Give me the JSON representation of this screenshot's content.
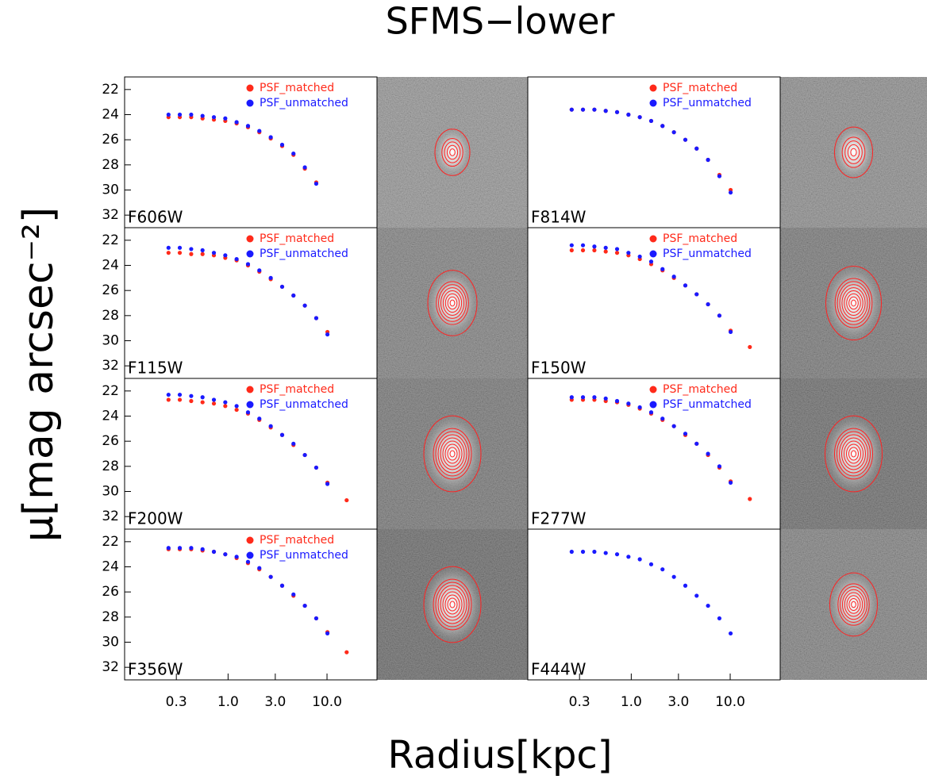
{
  "figure": {
    "title": "SFMS−lower",
    "xlabel": "Radius[kpc]",
    "ylabel": "μ[mag arcsec⁻²]"
  },
  "chart_data": [
    {
      "type": "scatter",
      "title": "F606W",
      "xscale": "log",
      "xlim": [
        0.09,
        32
      ],
      "ylim": [
        33,
        21
      ],
      "yticks": [
        22,
        24,
        26,
        28,
        30,
        32
      ],
      "x": [
        0.25,
        0.325,
        0.424,
        0.552,
        0.719,
        0.937,
        1.22,
        1.59,
        2.07,
        2.7,
        3.52,
        4.58,
        5.97,
        7.78
      ],
      "series": [
        {
          "name": "PSF_matched",
          "color": "#ff2a1a",
          "values": [
            24.2,
            24.2,
            24.2,
            24.3,
            24.4,
            24.5,
            24.7,
            25.0,
            25.4,
            25.9,
            26.5,
            27.2,
            28.3,
            29.4
          ]
        },
        {
          "name": "PSF_unmatched",
          "color": "#1a1aff",
          "values": [
            24.0,
            24.0,
            24.0,
            24.1,
            24.2,
            24.3,
            24.6,
            24.9,
            25.3,
            25.8,
            26.4,
            27.1,
            28.2,
            29.5
          ]
        }
      ]
    },
    {
      "type": "scatter",
      "title": "F814W",
      "xscale": "log",
      "xlim": [
        0.09,
        32
      ],
      "ylim": [
        33,
        21
      ],
      "x": [
        0.25,
        0.325,
        0.424,
        0.552,
        0.719,
        0.937,
        1.22,
        1.59,
        2.07,
        2.7,
        3.52,
        4.58,
        5.97,
        7.78,
        10.1
      ],
      "series": [
        {
          "name": "PSF_matched",
          "color": "#ff2a1a",
          "values": [
            23.6,
            23.6,
            23.6,
            23.7,
            23.8,
            24.0,
            24.2,
            24.5,
            24.9,
            25.4,
            26.0,
            26.7,
            27.6,
            28.8,
            30.0
          ]
        },
        {
          "name": "PSF_unmatched",
          "color": "#1a1aff",
          "values": [
            23.6,
            23.6,
            23.6,
            23.7,
            23.8,
            24.0,
            24.2,
            24.5,
            24.9,
            25.4,
            26.0,
            26.7,
            27.6,
            28.9,
            30.2
          ]
        }
      ]
    },
    {
      "type": "scatter",
      "title": "F115W",
      "xscale": "log",
      "xlim": [
        0.09,
        32
      ],
      "ylim": [
        33,
        21
      ],
      "yticks": [
        22,
        24,
        26,
        28,
        30,
        32
      ],
      "x": [
        0.25,
        0.325,
        0.424,
        0.552,
        0.719,
        0.937,
        1.22,
        1.59,
        2.07,
        2.7,
        3.52,
        4.58,
        5.97,
        7.78,
        10.1
      ],
      "series": [
        {
          "name": "PSF_matched",
          "color": "#ff2a1a",
          "values": [
            23.0,
            23.0,
            23.1,
            23.1,
            23.2,
            23.4,
            23.6,
            24.0,
            24.5,
            25.1,
            25.7,
            26.4,
            27.2,
            28.2,
            29.3
          ]
        },
        {
          "name": "PSF_unmatched",
          "color": "#1a1aff",
          "values": [
            22.6,
            22.6,
            22.7,
            22.8,
            23.0,
            23.2,
            23.5,
            23.9,
            24.4,
            25.0,
            25.7,
            26.4,
            27.2,
            28.2,
            29.5
          ]
        }
      ]
    },
    {
      "type": "scatter",
      "title": "F150W",
      "xscale": "log",
      "xlim": [
        0.09,
        32
      ],
      "ylim": [
        33,
        21
      ],
      "x": [
        0.25,
        0.325,
        0.424,
        0.552,
        0.719,
        0.937,
        1.22,
        1.59,
        2.07,
        2.7,
        3.52,
        4.58,
        5.97,
        7.78,
        10.1,
        15.8
      ],
      "series": [
        {
          "name": "PSF_matched",
          "color": "#ff2a1a",
          "values": [
            22.8,
            22.8,
            22.8,
            22.9,
            23.0,
            23.2,
            23.5,
            23.9,
            24.4,
            25.0,
            25.6,
            26.3,
            27.1,
            28.0,
            29.2,
            30.5
          ]
        },
        {
          "name": "PSF_unmatched",
          "color": "#1a1aff",
          "values": [
            22.4,
            22.4,
            22.5,
            22.6,
            22.7,
            23.0,
            23.3,
            23.7,
            24.3,
            24.9,
            25.6,
            26.3,
            27.1,
            28.0,
            29.3,
            null
          ]
        }
      ]
    },
    {
      "type": "scatter",
      "title": "F200W",
      "xscale": "log",
      "xlim": [
        0.09,
        32
      ],
      "ylim": [
        33,
        21
      ],
      "yticks": [
        22,
        24,
        26,
        28,
        30,
        32
      ],
      "x": [
        0.25,
        0.325,
        0.424,
        0.552,
        0.719,
        0.937,
        1.22,
        1.59,
        2.07,
        2.7,
        3.52,
        4.58,
        5.97,
        7.78,
        10.1,
        15.8
      ],
      "series": [
        {
          "name": "PSF_matched",
          "color": "#ff2a1a",
          "values": [
            22.7,
            22.7,
            22.8,
            22.9,
            23.0,
            23.2,
            23.5,
            23.8,
            24.3,
            24.9,
            25.5,
            26.3,
            27.1,
            28.1,
            29.3,
            30.7
          ]
        },
        {
          "name": "PSF_unmatched",
          "color": "#1a1aff",
          "values": [
            22.3,
            22.3,
            22.4,
            22.5,
            22.7,
            22.9,
            23.2,
            23.7,
            24.2,
            24.8,
            25.5,
            26.2,
            27.1,
            28.1,
            29.4,
            null
          ]
        }
      ]
    },
    {
      "type": "scatter",
      "title": "F277W",
      "xscale": "log",
      "xlim": [
        0.09,
        32
      ],
      "ylim": [
        33,
        21
      ],
      "x": [
        0.25,
        0.325,
        0.424,
        0.552,
        0.719,
        0.937,
        1.22,
        1.59,
        2.07,
        2.7,
        3.52,
        4.58,
        5.97,
        7.78,
        10.1,
        15.8
      ],
      "series": [
        {
          "name": "PSF_matched",
          "color": "#ff2a1a",
          "values": [
            22.7,
            22.7,
            22.7,
            22.8,
            22.9,
            23.1,
            23.4,
            23.8,
            24.3,
            24.8,
            25.5,
            26.2,
            27.1,
            28.1,
            29.2,
            30.6
          ]
        },
        {
          "name": "PSF_unmatched",
          "color": "#1a1aff",
          "values": [
            22.5,
            22.5,
            22.5,
            22.6,
            22.8,
            23.0,
            23.3,
            23.7,
            24.2,
            24.8,
            25.4,
            26.2,
            27.0,
            28.0,
            29.3,
            null
          ]
        }
      ]
    },
    {
      "type": "scatter",
      "title": "F356W",
      "xscale": "log",
      "xlim": [
        0.09,
        32
      ],
      "ylim": [
        33,
        21
      ],
      "yticks": [
        22,
        24,
        26,
        28,
        30,
        32
      ],
      "xticks": [
        0.3,
        {
          "value": 1,
          "label": "1.0"
        },
        {
          "value": 3,
          "label": "3.0"
        },
        {
          "value": 10,
          "label": "10.0"
        }
      ],
      "x": [
        0.25,
        0.325,
        0.424,
        0.552,
        0.719,
        0.937,
        1.22,
        1.59,
        2.07,
        2.7,
        3.52,
        4.58,
        5.97,
        7.78,
        10.1,
        15.8
      ],
      "series": [
        {
          "name": "PSF_matched",
          "color": "#ff2a1a",
          "values": [
            22.6,
            22.6,
            22.6,
            22.7,
            22.8,
            23.0,
            23.3,
            23.7,
            24.2,
            24.8,
            25.5,
            26.3,
            27.1,
            28.1,
            29.2,
            30.8
          ]
        },
        {
          "name": "PSF_unmatched",
          "color": "#1a1aff",
          "values": [
            22.5,
            22.5,
            22.5,
            22.6,
            22.8,
            23.0,
            23.2,
            23.6,
            24.1,
            24.8,
            25.5,
            26.2,
            27.1,
            28.1,
            29.3,
            null
          ]
        }
      ]
    },
    {
      "type": "scatter",
      "title": "F444W",
      "xscale": "log",
      "xlim": [
        0.09,
        32
      ],
      "ylim": [
        33,
        21
      ],
      "xticks": [
        0.3,
        {
          "value": 1,
          "label": "1.0"
        },
        {
          "value": 3,
          "label": "3.0"
        },
        {
          "value": 10,
          "label": "10.0"
        }
      ],
      "x": [
        0.25,
        0.325,
        0.424,
        0.552,
        0.719,
        0.937,
        1.22,
        1.59,
        2.07,
        2.7,
        3.52,
        4.58,
        5.97,
        7.78,
        10.1
      ],
      "series": [
        {
          "color": "#1a1aff",
          "values": [
            22.8,
            22.8,
            22.8,
            22.9,
            23.0,
            23.2,
            23.4,
            23.8,
            24.2,
            24.8,
            25.5,
            26.3,
            27.1,
            28.1,
            29.3
          ]
        }
      ]
    }
  ]
}
